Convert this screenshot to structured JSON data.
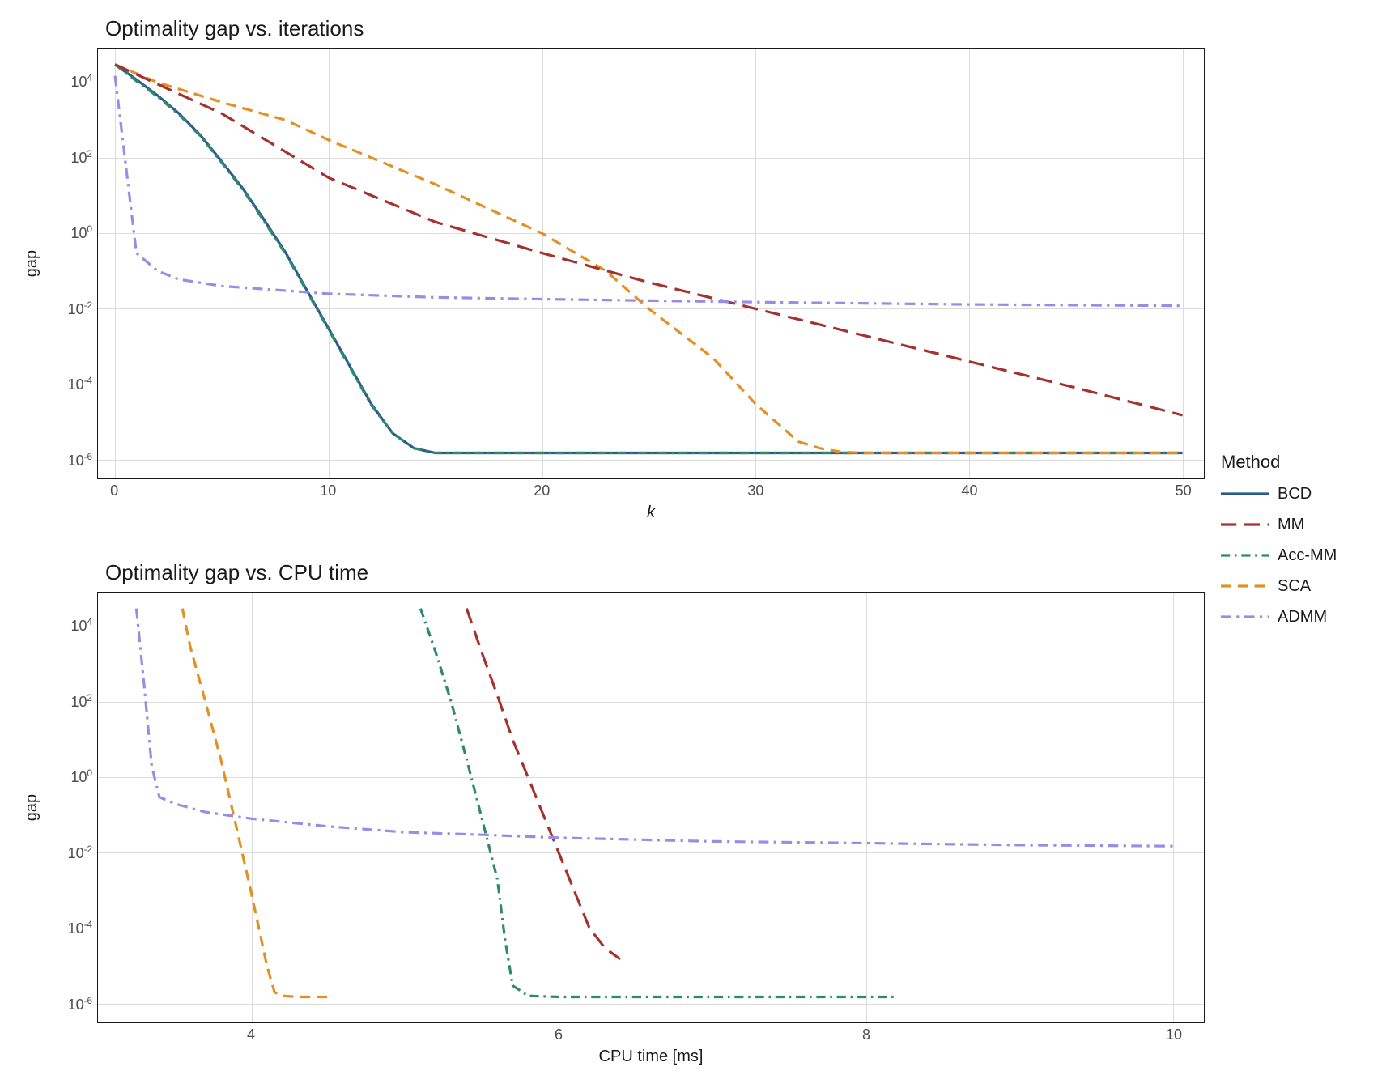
{
  "legend": {
    "title": "Method",
    "items": [
      {
        "label": "BCD",
        "color": "#2b5a8c",
        "dash": "solid"
      },
      {
        "label": "MM",
        "color": "#a5322e",
        "dash": "longdash"
      },
      {
        "label": "Acc-MM",
        "color": "#2d8a6e",
        "dash": "dash-dot"
      },
      {
        "label": "SCA",
        "color": "#e39023",
        "dash": "meddash"
      },
      {
        "label": "ADMM",
        "color": "#9a8ce6",
        "dash": "dash-dot2"
      }
    ]
  },
  "panel_top": {
    "title": "Optimality gap vs. iterations",
    "type": "line",
    "xlabel": "k",
    "xlabel_italic": true,
    "ylabel": "gap",
    "xlim": [
      -0.8,
      51
    ],
    "xticks": [
      0,
      10,
      20,
      30,
      40,
      50
    ],
    "yscale": "log",
    "ylim_exp": [
      -6.5,
      4.9
    ],
    "ytick_exps": [
      -6,
      -4,
      -2,
      0,
      2,
      4
    ],
    "grid_color": "#dcdcdc",
    "line_width": 3.2,
    "series": [
      {
        "method": "BCD",
        "x": [
          0,
          1,
          2,
          3,
          4,
          5,
          6,
          7,
          8,
          9,
          10,
          11,
          12,
          13,
          14,
          15,
          20,
          30,
          40,
          50
        ],
        "y": [
          30000.0,
          12000.0,
          4500.0,
          1500.0,
          400.0,
          80.0,
          15.0,
          2.2,
          0.3,
          0.03,
          0.003,
          0.0003,
          3e-05,
          5e-06,
          2e-06,
          1.5e-06,
          1.5e-06,
          1.5e-06,
          1.5e-06,
          1.5e-06
        ]
      },
      {
        "method": "Acc-MM",
        "x": [
          0,
          1,
          2,
          3,
          4,
          5,
          6,
          7,
          8,
          9,
          10,
          11,
          12,
          13,
          14,
          15,
          20,
          30,
          40,
          50
        ],
        "y": [
          30000.0,
          11000.0,
          4200.0,
          1400.0,
          380.0,
          75.0,
          14.0,
          2.0,
          0.28,
          0.028,
          0.0028,
          0.00028,
          2.8e-05,
          5e-06,
          2e-06,
          1.5e-06,
          1.5e-06,
          1.5e-06,
          1.5e-06,
          1.5e-06
        ]
      },
      {
        "method": "SCA",
        "x": [
          0,
          2,
          5,
          8,
          10,
          15,
          20,
          23,
          25,
          28,
          30,
          32,
          33,
          34,
          35,
          36,
          40,
          50
        ],
        "y": [
          30000.0,
          10000.0,
          3000.0,
          1000.0,
          300.0,
          20.0,
          1.0,
          0.1,
          0.01,
          0.0005,
          3e-05,
          3e-06,
          2e-06,
          1.6e-06,
          1.5e-06,
          1.5e-06,
          1.5e-06,
          1.5e-06
        ]
      },
      {
        "method": "MM",
        "x": [
          0,
          5,
          10,
          15,
          20,
          25,
          30,
          35,
          40,
          45,
          50
        ],
        "y": [
          30000.0,
          1500.0,
          30.0,
          2.0,
          0.3,
          0.05,
          0.01,
          0.002,
          0.0004,
          8e-05,
          1.5e-05
        ]
      },
      {
        "method": "ADMM",
        "x": [
          0,
          1,
          2,
          3,
          5,
          10,
          15,
          20,
          30,
          40,
          50
        ],
        "y": [
          15000.0,
          0.3,
          0.1,
          0.06,
          0.04,
          0.025,
          0.02,
          0.018,
          0.015,
          0.013,
          0.012
        ]
      }
    ]
  },
  "panel_bottom": {
    "title": "Optimality gap vs. CPU time",
    "type": "line",
    "xlabel": "CPU time [ms]",
    "xlabel_italic": false,
    "ylabel": "gap",
    "xlim": [
      3.0,
      10.2
    ],
    "xticks": [
      4,
      6,
      8,
      10
    ],
    "yscale": "log",
    "ylim_exp": [
      -6.5,
      4.9
    ],
    "ytick_exps": [
      -6,
      -4,
      -2,
      0,
      2,
      4
    ],
    "grid_color": "#dcdcdc",
    "line_width": 3.2,
    "series": [
      {
        "method": "Acc-MM",
        "x": [
          5.1,
          5.2,
          5.3,
          5.4,
          5.5,
          5.6,
          5.65,
          5.7,
          5.8,
          6.0,
          6.5,
          7.0,
          8.0,
          8.2
        ],
        "y": [
          30000.0,
          2000.0,
          100.0,
          3.0,
          0.08,
          0.002,
          5e-05,
          3e-06,
          1.6e-06,
          1.5e-06,
          1.5e-06,
          1.5e-06,
          1.5e-06,
          1.5e-06
        ]
      },
      {
        "method": "SCA",
        "x": [
          3.55,
          3.6,
          3.7,
          3.8,
          3.9,
          4.0,
          4.1,
          4.15,
          4.2,
          4.3,
          4.5
        ],
        "y": [
          30000.0,
          3000.0,
          100.0,
          3.0,
          0.05,
          0.0008,
          1e-05,
          2e-06,
          1.6e-06,
          1.5e-06,
          1.5e-06
        ]
      },
      {
        "method": "MM",
        "x": [
          5.4,
          5.5,
          5.6,
          5.7,
          5.8,
          5.9,
          6.0,
          6.1,
          6.2,
          6.3,
          6.4
        ],
        "y": [
          30000.0,
          2000.0,
          150.0,
          10.0,
          1.0,
          0.1,
          0.01,
          0.001,
          0.0001,
          3e-05,
          1.5e-05
        ]
      },
      {
        "method": "ADMM",
        "x": [
          3.25,
          3.3,
          3.35,
          3.4,
          3.5,
          3.7,
          4.0,
          4.5,
          5.0,
          5.5,
          6.0,
          7.0,
          8.0,
          9.0,
          10.0
        ],
        "y": [
          30000.0,
          300.0,
          2.0,
          0.3,
          0.2,
          0.12,
          0.08,
          0.05,
          0.035,
          0.03,
          0.025,
          0.02,
          0.018,
          0.016,
          0.015
        ]
      }
    ]
  },
  "background_color": "#ffffff",
  "title_fontsize": 26,
  "label_fontsize": 20,
  "tick_fontsize": 18,
  "legend_fontsize": 20
}
